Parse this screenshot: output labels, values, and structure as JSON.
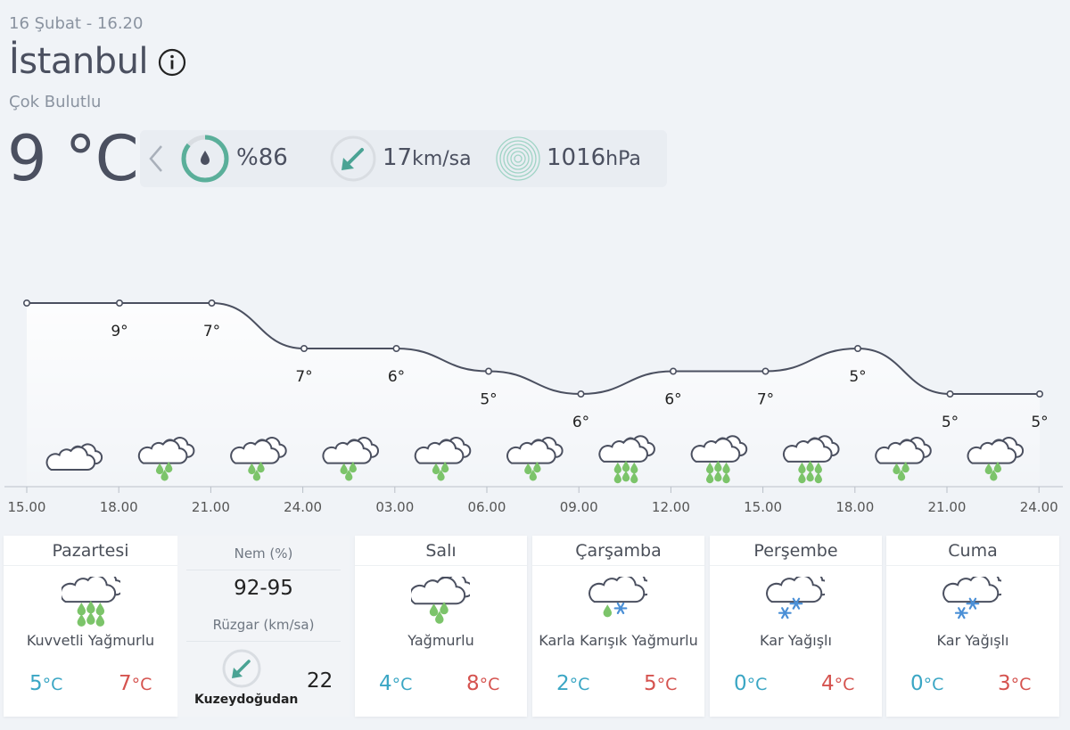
{
  "header": {
    "datetime": "16 Şubat - 16.20",
    "city": "İstanbul",
    "condition": "Çok Bulutlu",
    "temperature": "9 °C"
  },
  "metrics": {
    "humidity": "%86",
    "humidity_percent": 86,
    "wind_value": "17",
    "wind_unit": "km/sa",
    "pressure_value": "1016",
    "pressure_unit": "hPa"
  },
  "chart_data": {
    "type": "line",
    "x": [
      "15.00",
      "18.00",
      "21.00",
      "24.00",
      "03.00",
      "06.00",
      "09.00",
      "12.00",
      "15.00",
      "18.00",
      "21.00",
      "24.00"
    ],
    "series": [
      {
        "values": [
          9,
          9,
          7,
          7,
          6,
          5,
          6,
          6,
          7,
          5,
          5,
          5
        ]
      }
    ],
    "leading_value": 9,
    "labels": [
      "9°",
      "7°",
      "7°",
      "6°",
      "5°",
      "6°",
      "6°",
      "7°",
      "5°",
      "5°",
      "5°"
    ],
    "icons": [
      "cloud-icon",
      "rain-icon",
      "rain-icon",
      "rain-icon",
      "rain-icon",
      "rain-icon",
      "heavy-rain-icon",
      "heavy-rain-icon",
      "heavy-rain-icon",
      "rain-icon",
      "rain-icon"
    ],
    "ylim": [
      5,
      9
    ]
  },
  "forecast": [
    {
      "day": "Pazartesi",
      "icon": "heavy-rain-icon",
      "desc": "Kuvvetli Yağmurlu",
      "min": "5",
      "max": "7"
    },
    {
      "day": "Salı",
      "icon": "rain-icon",
      "desc": "Yağmurlu",
      "min": "4",
      "max": "8"
    },
    {
      "day": "Çarşamba",
      "icon": "sleet-icon",
      "desc": "Karla Karışık Yağmurlu",
      "min": "2",
      "max": "5"
    },
    {
      "day": "Perşembe",
      "icon": "snow-icon",
      "desc": "Kar Yağışlı",
      "min": "0",
      "max": "4"
    },
    {
      "day": "Cuma",
      "icon": "snow-icon",
      "desc": "Kar Yağışlı",
      "min": "0",
      "max": "3"
    }
  ],
  "detail": {
    "humidity_label": "Nem (%)",
    "humidity_value": "92-95",
    "wind_label": "Rüzgar (km/sa)",
    "wind_direction": "Kuzeydoğudan",
    "wind_speed": "22"
  },
  "units": {
    "celsius": "°C"
  },
  "colors": {
    "humidity_ring": "#5aaf9a",
    "wind_arrow": "#4aa394",
    "rain_drop": "#7cc46a",
    "snow_flake": "#4a8fd6",
    "temp_min": "#3aa6c4",
    "temp_max": "#d5534f",
    "line": "#4b5060"
  }
}
